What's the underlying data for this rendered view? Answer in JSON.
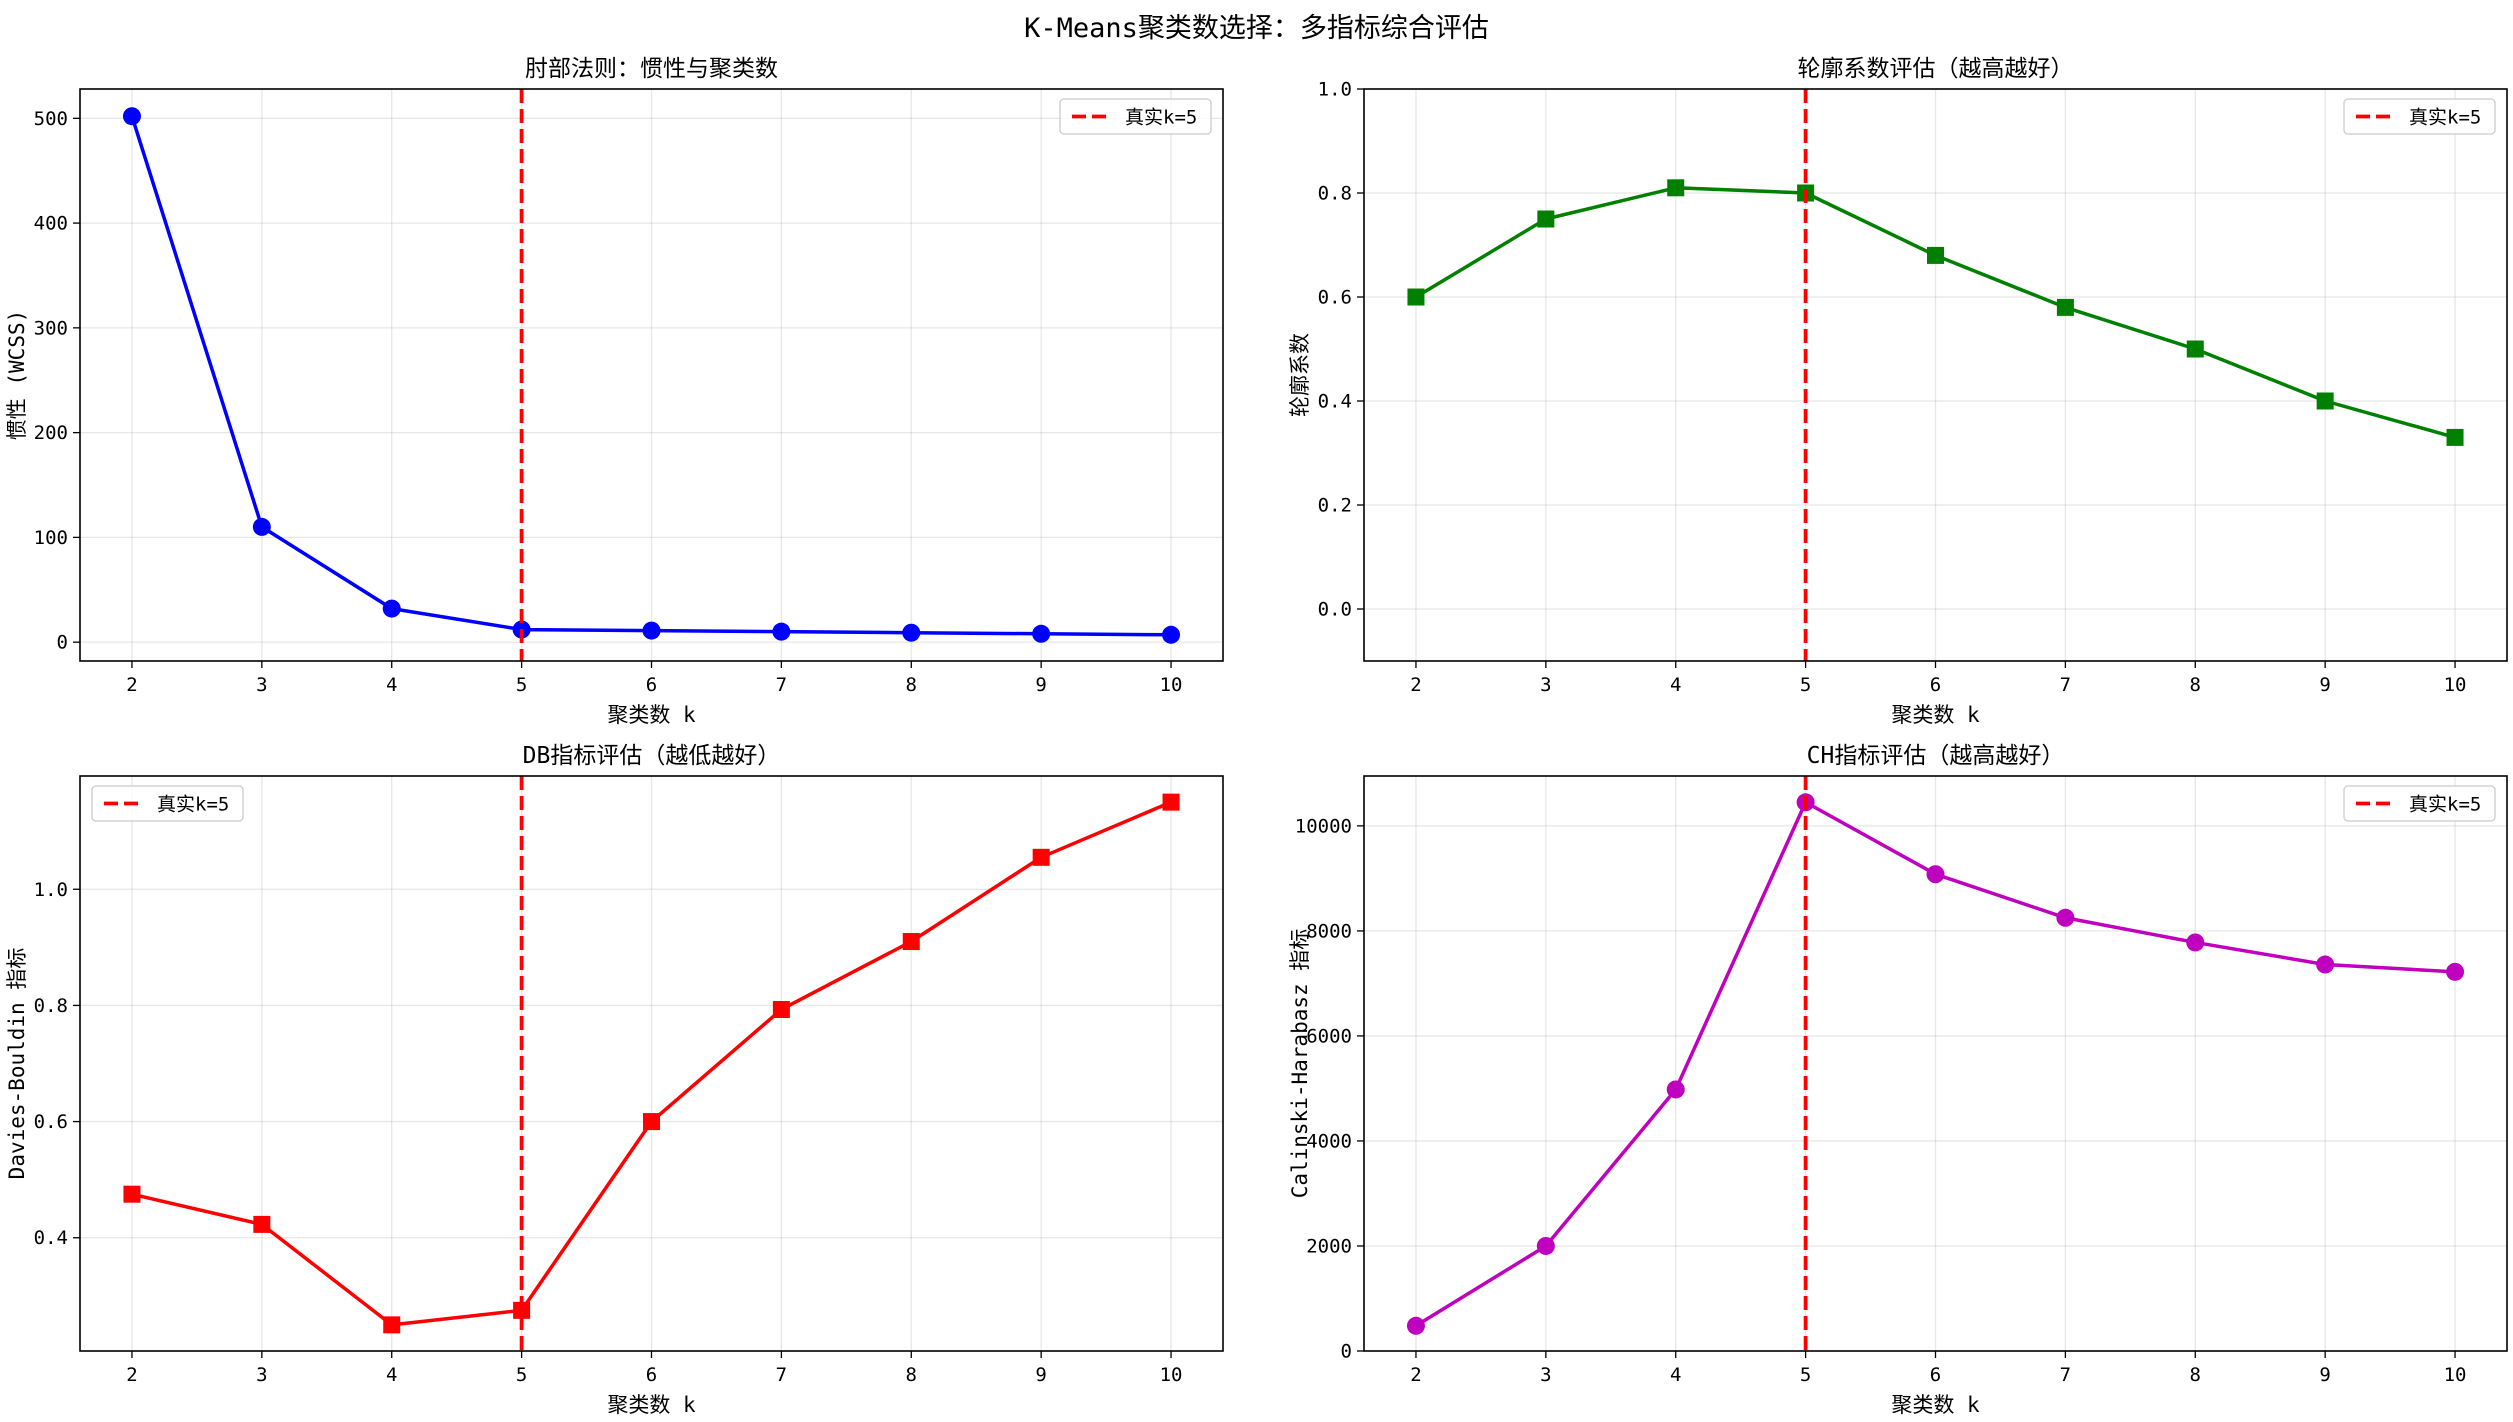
{
  "suptitle": "K-Means聚类数选择：多指标综合评估",
  "chart_data": [
    {
      "type": "line",
      "title": "肘部法则：惯性与聚类数",
      "xlabel": "聚类数 k",
      "ylabel": "惯性 (WCSS)",
      "x": [
        2,
        3,
        4,
        5,
        6,
        7,
        8,
        9,
        10
      ],
      "xlim": [
        1.6,
        10.4
      ],
      "ylim": [
        -18,
        528
      ],
      "yticks": [
        0,
        100,
        200,
        300,
        400,
        500
      ],
      "ytick_labels": [
        "0",
        "100",
        "200",
        "300",
        "400",
        "500"
      ],
      "grid": true,
      "legend_position": "top-right",
      "series": [
        {
          "values": [
            502,
            110,
            32,
            12,
            11,
            10,
            9,
            8,
            7
          ],
          "color": "#0000ff",
          "marker": "circle"
        }
      ],
      "vline": {
        "x": 5,
        "label": "真实k=5",
        "color": "#ff0000",
        "style": "dashed"
      }
    },
    {
      "type": "line",
      "title": "轮廓系数评估（越高越好）",
      "xlabel": "聚类数 k",
      "ylabel": "轮廓系数",
      "x": [
        2,
        3,
        4,
        5,
        6,
        7,
        8,
        9,
        10
      ],
      "xlim": [
        1.6,
        10.4
      ],
      "ylim": [
        -0.1,
        1.0
      ],
      "yticks": [
        0.0,
        0.2,
        0.4,
        0.6,
        0.8,
        1.0
      ],
      "ytick_labels": [
        "0.0",
        "0.2",
        "0.4",
        "0.6",
        "0.8",
        "1.0"
      ],
      "grid": true,
      "legend_position": "top-right",
      "series": [
        {
          "values": [
            0.6,
            0.75,
            0.81,
            0.8,
            0.68,
            0.58,
            0.5,
            0.4,
            0.33
          ],
          "color": "#008000",
          "marker": "square"
        }
      ],
      "vline": {
        "x": 5,
        "label": "真实k=5",
        "color": "#ff0000",
        "style": "dashed"
      }
    },
    {
      "type": "line",
      "title": "DB指标评估（越低越好）",
      "xlabel": "聚类数 k",
      "ylabel": "Davies-Bouldin 指标",
      "x": [
        2,
        3,
        4,
        5,
        6,
        7,
        8,
        9,
        10
      ],
      "xlim": [
        1.6,
        10.4
      ],
      "ylim": [
        0.205,
        1.195
      ],
      "yticks": [
        0.4,
        0.6,
        0.8,
        1.0
      ],
      "ytick_labels": [
        "0.4",
        "0.6",
        "0.8",
        "1.0"
      ],
      "grid": true,
      "legend_position": "top-left",
      "series": [
        {
          "values": [
            0.475,
            0.423,
            0.25,
            0.275,
            0.6,
            0.793,
            0.91,
            1.055,
            1.15
          ],
          "color": "#ff0000",
          "marker": "square"
        }
      ],
      "vline": {
        "x": 5,
        "label": "真实k=5",
        "color": "#ff0000",
        "style": "dashed"
      }
    },
    {
      "type": "line",
      "title": "CH指标评估（越高越好）",
      "xlabel": "聚类数 k",
      "ylabel": "Calinski-Harabasz 指标",
      "x": [
        2,
        3,
        4,
        5,
        6,
        7,
        8,
        9,
        10
      ],
      "xlim": [
        1.6,
        10.4
      ],
      "ylim": [
        0,
        10950
      ],
      "yticks": [
        0,
        2000,
        4000,
        6000,
        8000,
        10000
      ],
      "ytick_labels": [
        "0",
        "2000",
        "4000",
        "6000",
        "8000",
        "10000"
      ],
      "grid": true,
      "legend_position": "top-right",
      "series": [
        {
          "values": [
            480,
            2000,
            4980,
            10450,
            9080,
            8250,
            7780,
            7360,
            7220
          ],
          "color": "#bf00bf",
          "marker": "circle"
        }
      ],
      "vline": {
        "x": 5,
        "label": "真实k=5",
        "color": "#ff0000",
        "style": "dashed"
      }
    }
  ]
}
